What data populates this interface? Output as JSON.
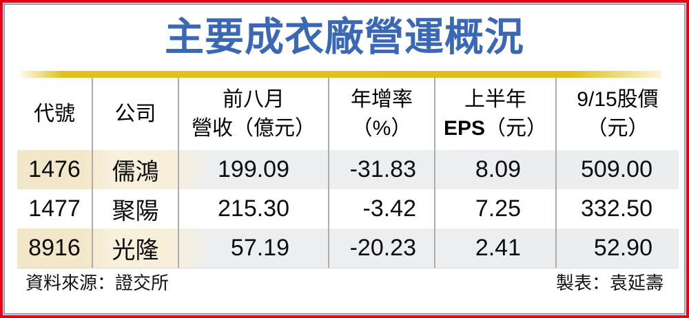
{
  "title": {
    "text": "主要成衣廠營運概況",
    "color": "#3A68B4"
  },
  "accent_band_color": "#E0BF1C",
  "frame": {
    "outer_border_color": "#E60012",
    "inner_border_color": "#8A9CBC"
  },
  "table": {
    "headers": {
      "code": "代號",
      "company": "公司",
      "revenue_line1": "前八月",
      "revenue_line2": "營收（億元）",
      "yoy_line1": "年增率",
      "yoy_line2": "（%）",
      "eps_line1": "上半年",
      "eps_bold": "EPS",
      "eps_unit": "（元）",
      "price_line1": "9/15股價",
      "price_line2": "（元）"
    },
    "rows": [
      {
        "code": "1476",
        "company": "儒鴻",
        "revenue": "199.09",
        "yoy": "-31.83",
        "eps": "8.09",
        "price": "509.00"
      },
      {
        "code": "1477",
        "company": "聚陽",
        "revenue": "215.30",
        "yoy": "-3.42",
        "eps": "7.25",
        "price": "332.50"
      },
      {
        "code": "8916",
        "company": "光隆",
        "revenue": "57.19",
        "yoy": "-20.23",
        "eps": "2.41",
        "price": "52.90"
      }
    ]
  },
  "footer": {
    "source": "資料來源：證交所",
    "credit": "製表：袁延壽"
  },
  "chart_data": {
    "type": "table",
    "title": "主要成衣廠營運概況",
    "columns": [
      "代號",
      "公司",
      "前八月營收（億元）",
      "年增率（%）",
      "上半年EPS（元）",
      "9/15股價（元）"
    ],
    "rows": [
      [
        "1476",
        "儒鴻",
        199.09,
        -31.83,
        8.09,
        509.0
      ],
      [
        "1477",
        "聚陽",
        215.3,
        -3.42,
        7.25,
        332.5
      ],
      [
        "8916",
        "光隆",
        57.19,
        -20.23,
        2.41,
        52.9
      ]
    ],
    "source": "資料來源：證交所",
    "credit": "製表：袁延壽"
  }
}
